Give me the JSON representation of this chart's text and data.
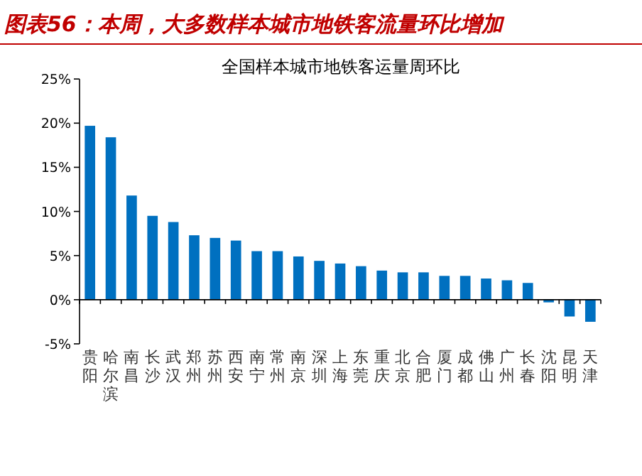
{
  "chart_data": {
    "type": "bar",
    "title": "图表56：本周，大多数样本城市地铁客流量环比增加",
    "subtitle": "全国样本城市地铁客运量周环比",
    "categories": [
      "贵阳",
      "哈尔滨",
      "南昌",
      "长沙",
      "武汉",
      "郑州",
      "苏州",
      "西安",
      "南宁",
      "常州",
      "南京",
      "深圳",
      "上海",
      "东莞",
      "重庆",
      "北京",
      "合肥",
      "厦门",
      "成都",
      "佛山",
      "广州",
      "长春",
      "沈阳",
      "昆明",
      "天津"
    ],
    "values": [
      19.7,
      18.4,
      11.8,
      9.5,
      8.8,
      7.3,
      7.0,
      6.7,
      5.5,
      5.5,
      4.9,
      4.4,
      4.1,
      3.8,
      3.3,
      3.1,
      3.1,
      2.7,
      2.7,
      2.4,
      2.2,
      1.9,
      -0.3,
      -1.9,
      -2.5
    ],
    "color": "#0070c0",
    "ylim": [
      -5,
      25
    ],
    "yticks": [
      {
        "value": -5,
        "label": "-5%"
      },
      {
        "value": 0,
        "label": "0%"
      },
      {
        "value": 5,
        "label": "5%"
      },
      {
        "value": 10,
        "label": "10%"
      },
      {
        "value": 15,
        "label": "15%"
      },
      {
        "value": 20,
        "label": "20%"
      },
      {
        "value": 25,
        "label": "25%"
      }
    ]
  }
}
